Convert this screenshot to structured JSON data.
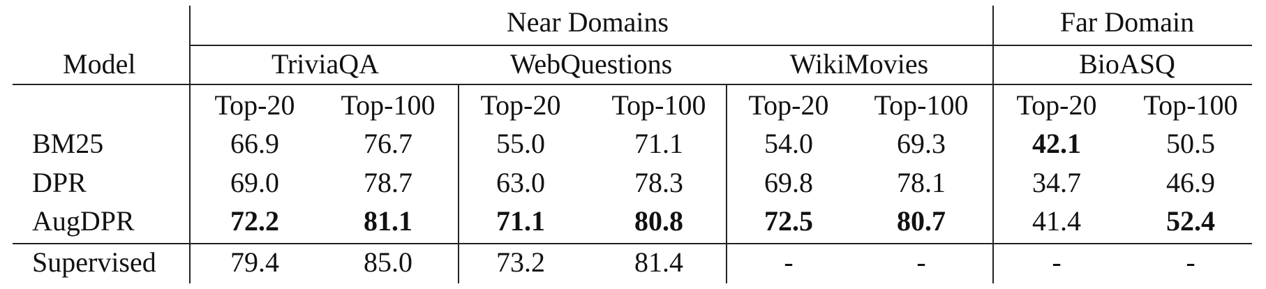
{
  "table": {
    "model_header": "Model",
    "group_headers": [
      "Near Domains",
      "Far Domain"
    ],
    "dataset_headers": [
      "TriviaQA",
      "WebQuestions",
      "WikiMovies",
      "BioASQ"
    ],
    "metric_headers": [
      "Top-20",
      "Top-100",
      "Top-20",
      "Top-100",
      "Top-20",
      "Top-100",
      "Top-20",
      "Top-100"
    ],
    "rows": [
      {
        "model": "BM25",
        "values": [
          "66.9",
          "76.7",
          "55.0",
          "71.1",
          "54.0",
          "69.3",
          "42.1",
          "50.5"
        ],
        "bold": [
          false,
          false,
          false,
          false,
          false,
          false,
          true,
          false
        ]
      },
      {
        "model": "DPR",
        "values": [
          "69.0",
          "78.7",
          "63.0",
          "78.3",
          "69.8",
          "78.1",
          "34.7",
          "46.9"
        ],
        "bold": [
          false,
          false,
          false,
          false,
          false,
          false,
          false,
          false
        ]
      },
      {
        "model": "AugDPR",
        "values": [
          "72.2",
          "81.1",
          "71.1",
          "80.8",
          "72.5",
          "80.7",
          "41.4",
          "52.4"
        ],
        "bold": [
          true,
          true,
          true,
          true,
          true,
          true,
          false,
          true
        ]
      }
    ],
    "supervised_row": {
      "model": "Supervised",
      "values": [
        "79.4",
        "85.0",
        "73.2",
        "81.4",
        "-",
        "-",
        "-",
        "-"
      ]
    }
  }
}
